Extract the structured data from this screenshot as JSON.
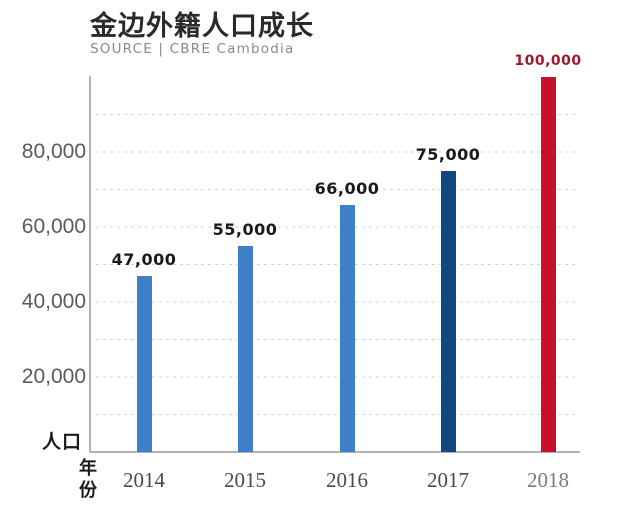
{
  "chart_data": {
    "type": "bar",
    "title": "金边外籍人口成长",
    "subtitle": "SOURCE | CBRE Cambodia",
    "xlabel": "年份",
    "ylabel": "人口",
    "categories": [
      "2014",
      "2015",
      "2016",
      "2017",
      "2018"
    ],
    "values": [
      47000,
      55000,
      66000,
      75000,
      100000
    ],
    "data_labels": [
      "47,000",
      "55,000",
      "66,000",
      "75,000",
      "100,000"
    ],
    "bar_colors": [
      "#3f7fc8",
      "#3f7fc8",
      "#3f7fc8",
      "#11477d",
      "#c8102e"
    ],
    "data_label_colors": [
      "#1a1a1a",
      "#1a1a1a",
      "#1a1a1a",
      "#1a1a1a",
      "#a01830"
    ],
    "y_ticks": [
      20000,
      40000,
      60000,
      80000
    ],
    "y_tick_labels": [
      "20,000",
      "40,000",
      "60,000",
      "80,000"
    ],
    "ylim": [
      0,
      100000
    ],
    "grid": true,
    "grid_style": "dashed horizontal every 10,000",
    "legend": null
  },
  "header": {
    "title": "金边外籍人口成长",
    "source": "SOURCE | CBRE Cambodia"
  },
  "axes": {
    "y_unit_label": "人口",
    "x_unit_label_chars": [
      "年",
      "份"
    ]
  }
}
